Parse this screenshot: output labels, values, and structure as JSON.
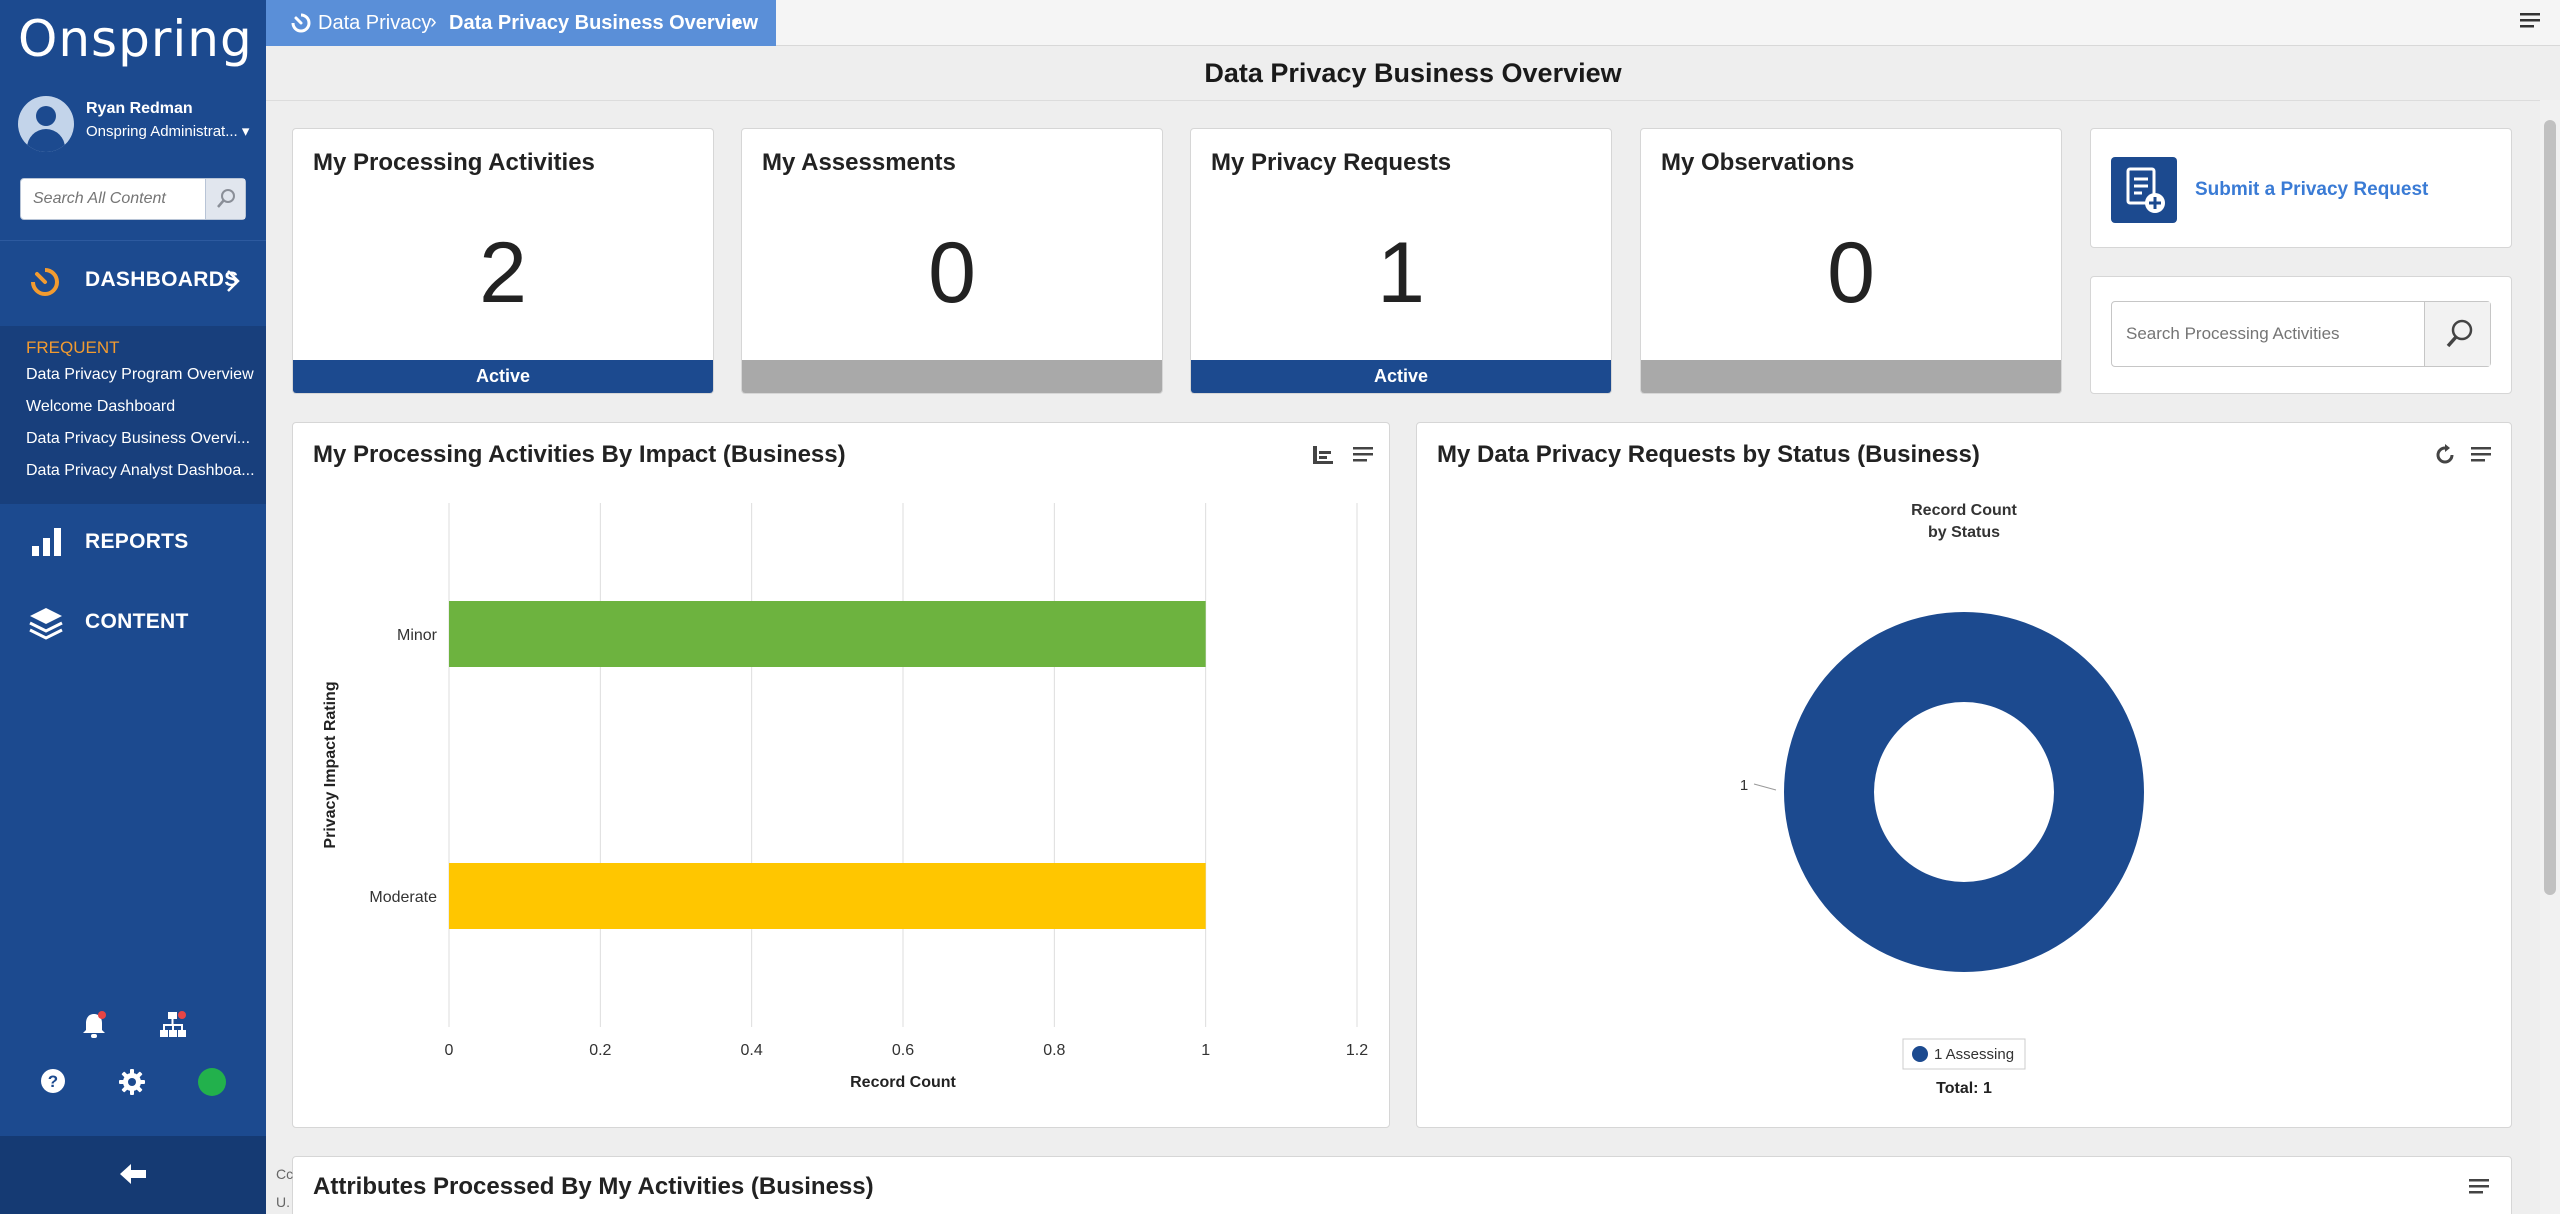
{
  "app": {
    "logo": "Onspring"
  },
  "user": {
    "name": "Ryan Redman",
    "role": "Onspring Administrat...",
    "role_caret": "▾"
  },
  "sidebar": {
    "search_placeholder": "Search All Content",
    "nav": [
      {
        "label": "DASHBOARDS",
        "icon": "dashboard-icon"
      },
      {
        "label": "REPORTS",
        "icon": "bar-chart-icon"
      },
      {
        "label": "CONTENT",
        "icon": "layers-icon"
      }
    ],
    "frequent_title": "FREQUENT",
    "frequent": [
      "Data Privacy Program Overview",
      "Welcome Dashboard",
      "Data Privacy Business Overvi...",
      "Data Privacy Analyst Dashboa..."
    ],
    "status_color": "#22b14c"
  },
  "breadcrumb": {
    "home": "Data Privacy",
    "separator": "›",
    "current": "Data Privacy Business Overview",
    "caret": "▾"
  },
  "page": {
    "title": "Data Privacy Business Overview"
  },
  "kpis": [
    {
      "title": "My Processing Activities",
      "value": "2",
      "footer": "Active"
    },
    {
      "title": "My Assessments",
      "value": "0",
      "footer": ""
    },
    {
      "title": "My Privacy Requests",
      "value": "1",
      "footer": "Active"
    },
    {
      "title": "My Observations",
      "value": "0",
      "footer": ""
    }
  ],
  "actions": {
    "submit_label": "Submit a Privacy Request",
    "search_placeholder": "Search Processing Activities"
  },
  "panels": {
    "impact_title": "My Processing Activities By Impact (Business)",
    "status_title": "My Data Privacy Requests by Status (Business)",
    "attrs_title": "Attributes Processed By My Activities (Business)"
  },
  "edge_text": [
    "Cc",
    "U."
  ],
  "colors": {
    "brand": "#1c4a8f",
    "accent": "#f29b30",
    "link": "#3a7bd5",
    "minor": "#6db33f",
    "moderate": "#ffc600"
  },
  "chart_data": [
    {
      "type": "bar",
      "orientation": "horizontal",
      "categories": [
        "Minor",
        "Moderate"
      ],
      "values": [
        1,
        1
      ],
      "colors": [
        "#6db33f",
        "#ffc600"
      ],
      "xlabel": "Record Count",
      "ylabel": "Privacy Impact Rating",
      "xlim": [
        0,
        1.2
      ],
      "xticks": [
        "0",
        "0.2",
        "0.4",
        "0.6",
        "0.8",
        "1",
        "1.2"
      ],
      "grid": true
    },
    {
      "type": "pie",
      "donut": true,
      "title": "Record Count",
      "subtitle": "by Status",
      "slices": [
        {
          "label": "Assessing",
          "value": 1,
          "color": "#1c4a8f"
        }
      ],
      "data_label": "1",
      "legend": "1 Assessing",
      "total": "Total: 1",
      "legend_position": "bottom"
    }
  ]
}
